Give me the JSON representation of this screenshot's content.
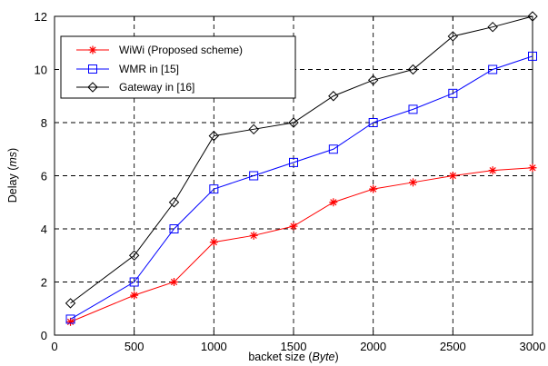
{
  "chart_data": {
    "type": "line",
    "xlabel_main": "backet size (",
    "xlabel_unit": "Byte",
    "xlabel_close": ")",
    "ylabel_main": "Delay (",
    "ylabel_unit": "ms",
    "ylabel_close": ")",
    "xlim": [
      0,
      3000
    ],
    "ylim": [
      0,
      12
    ],
    "xticks": [
      "0",
      "500",
      "1000",
      "1500",
      "2000",
      "2500",
      "3000"
    ],
    "yticks": [
      "0",
      "2",
      "4",
      "6",
      "8",
      "10",
      "12"
    ],
    "grid": true,
    "legend_position": "top-left",
    "series": [
      {
        "name": "WiWi (Proposed scheme)",
        "color": "#ff0000",
        "marker": "star",
        "x": [
          100,
          500,
          750,
          1000,
          1250,
          1500,
          1750,
          2000,
          2250,
          2500,
          2750,
          3000
        ],
        "values": [
          0.5,
          1.5,
          2.0,
          3.5,
          3.75,
          4.1,
          5.0,
          5.5,
          5.75,
          6.0,
          6.2,
          6.3
        ]
      },
      {
        "name": "WMR in [15]",
        "color": "#0000ff",
        "marker": "square",
        "x": [
          100,
          500,
          750,
          1000,
          1250,
          1500,
          1750,
          2000,
          2250,
          2500,
          2750,
          3000
        ],
        "values": [
          0.6,
          2.0,
          4.0,
          5.5,
          6.0,
          6.5,
          7.0,
          8.0,
          8.5,
          9.1,
          10.0,
          10.5
        ]
      },
      {
        "name": "Gateway in [16]",
        "color": "#000000",
        "marker": "diamond",
        "x": [
          100,
          500,
          750,
          1000,
          1250,
          1500,
          1750,
          2000,
          2250,
          2500,
          2750,
          3000
        ],
        "values": [
          1.2,
          3.0,
          5.0,
          7.5,
          7.75,
          8.0,
          9.0,
          9.6,
          10.0,
          11.25,
          11.6,
          12.0
        ]
      }
    ]
  }
}
